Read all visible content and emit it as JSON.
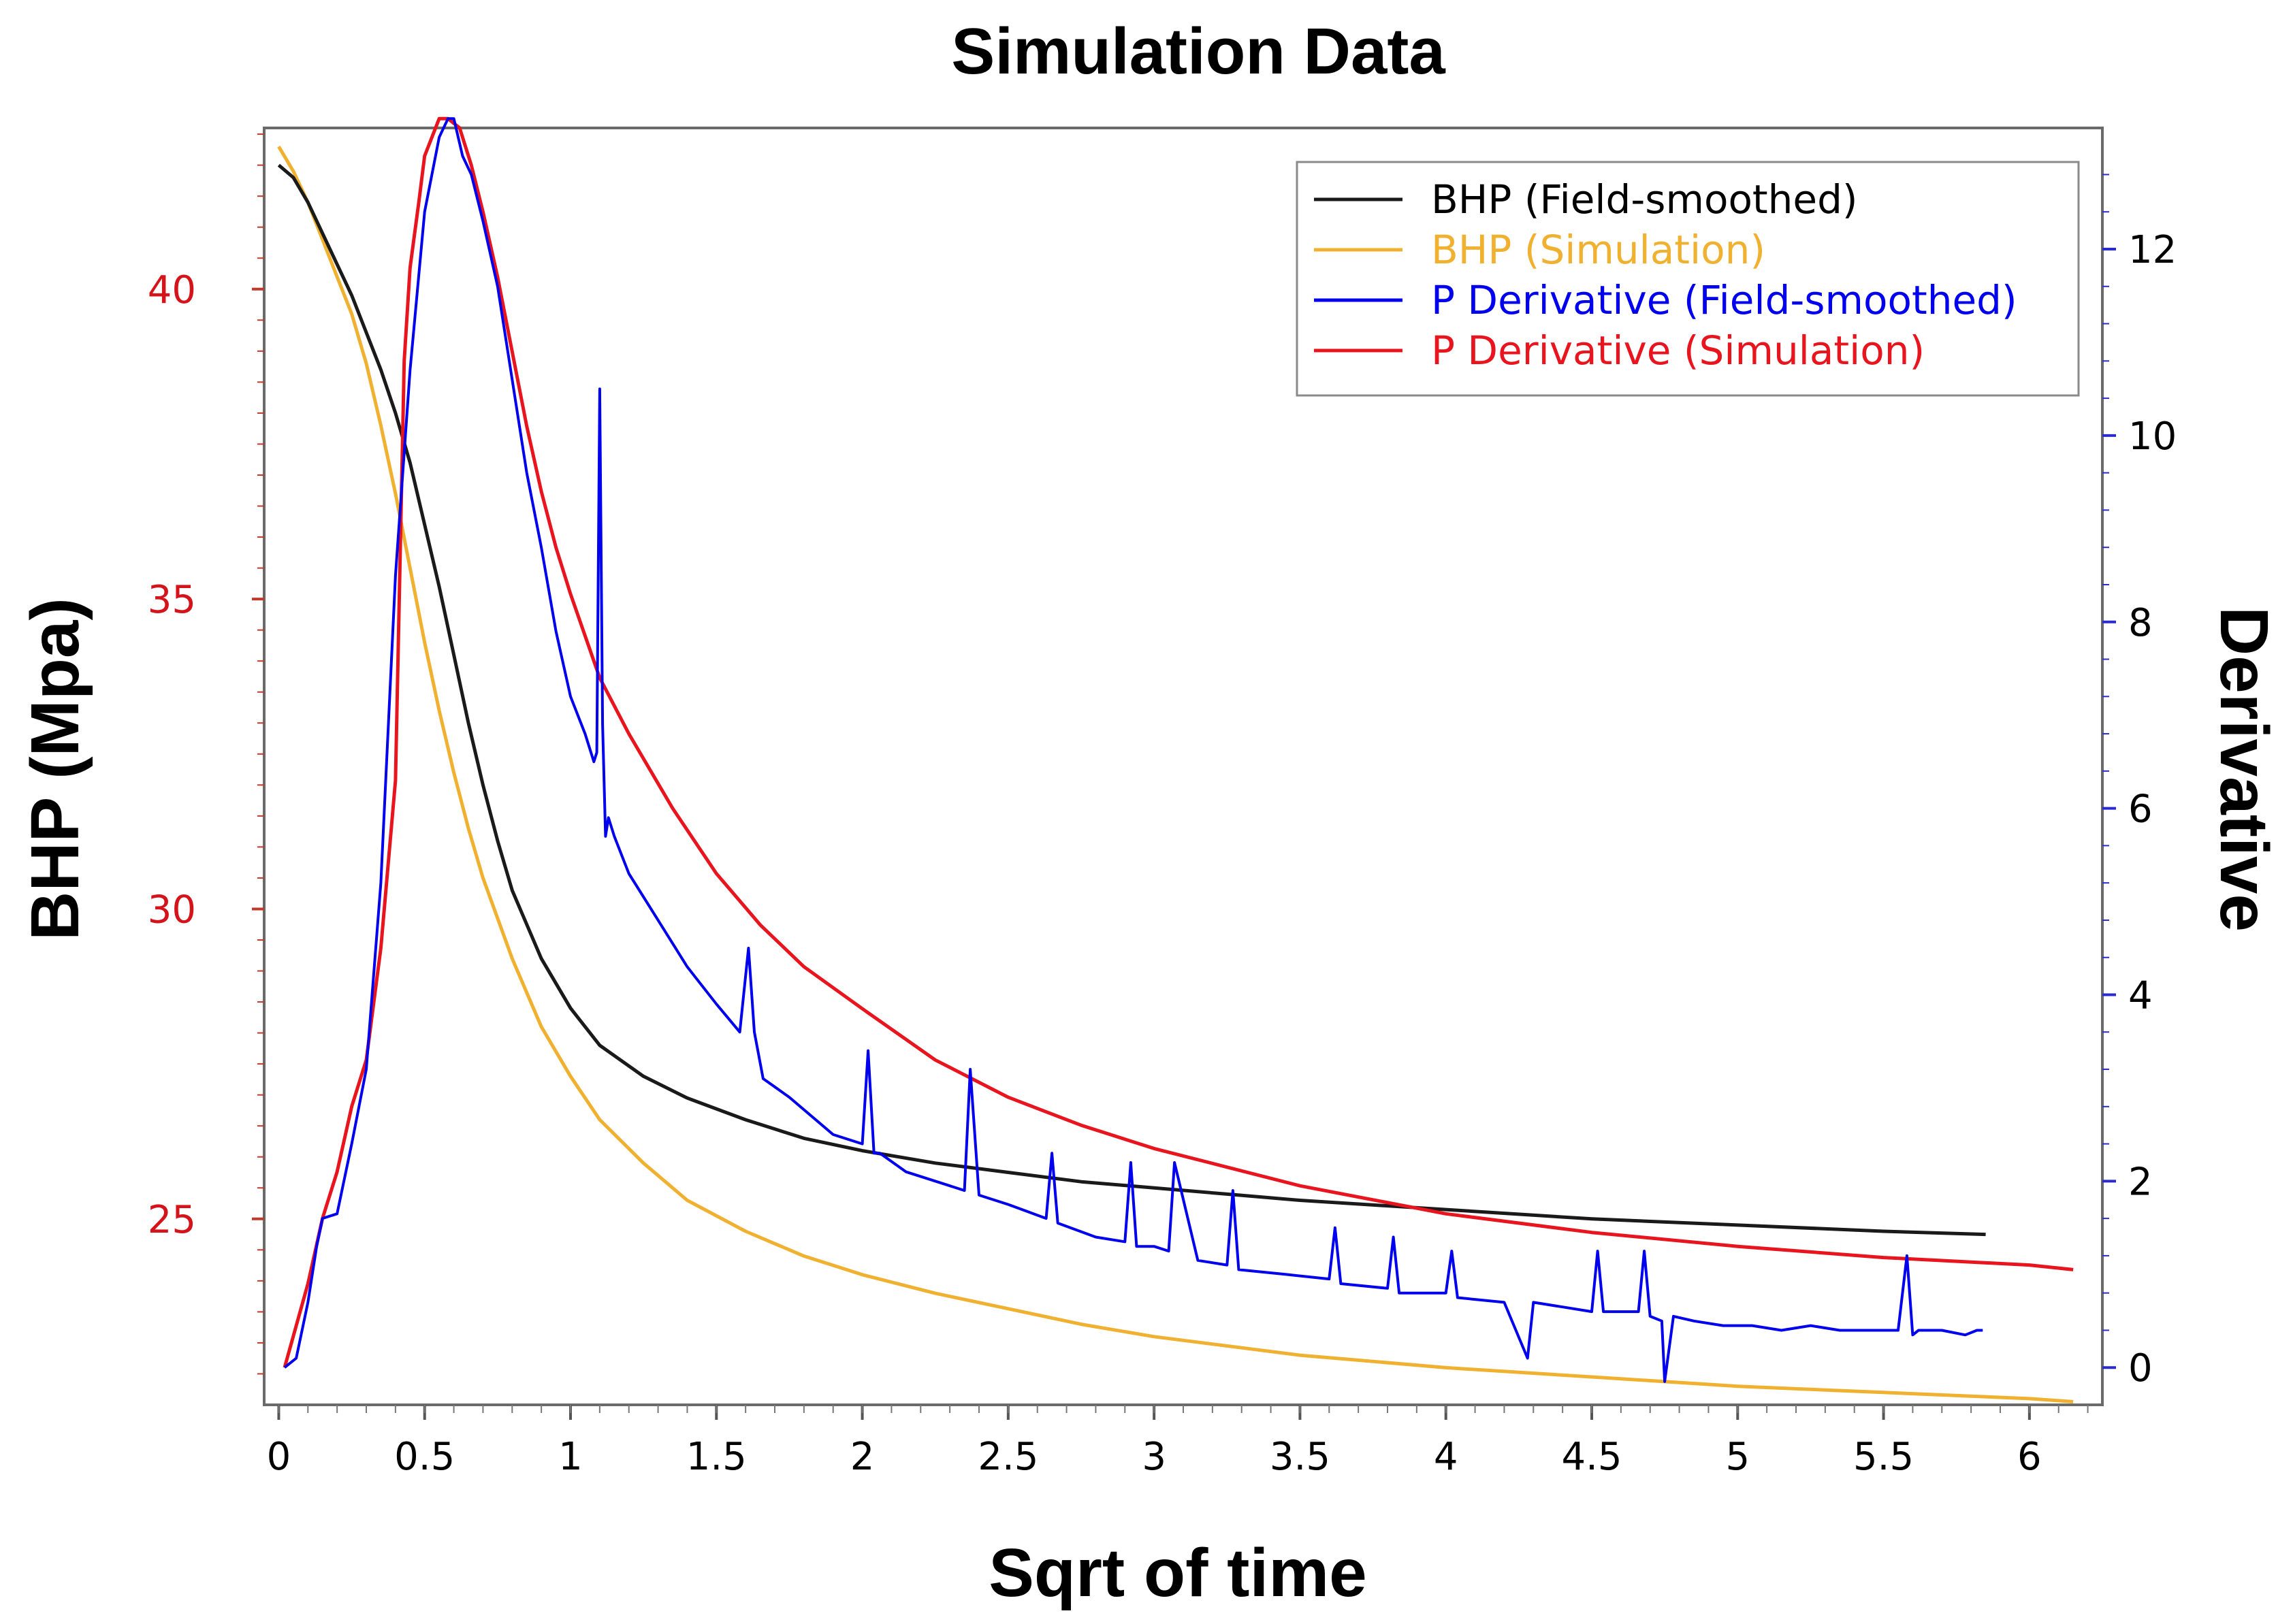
{
  "chart_data": {
    "type": "line",
    "title": "Simulation Data",
    "xlabel": "Sqrt of time",
    "ylabel_left": "BHP (Mpa)",
    "ylabel_right": "Derivative",
    "xlim": [
      -0.05,
      6.25
    ],
    "ylim_left": [
      22.0,
      42.6
    ],
    "ylim_right": [
      -0.4,
      13.3
    ],
    "x_ticks": [
      0,
      0.5,
      1,
      1.5,
      2,
      2.5,
      3,
      3.5,
      4,
      4.5,
      5,
      5.5,
      6
    ],
    "x_tick_labels": [
      "0",
      "0.5",
      "1",
      "1.5",
      "2",
      "2.5",
      "3",
      "3.5",
      "4",
      "4.5",
      "5",
      "5.5",
      "6"
    ],
    "y_left_ticks": [
      25,
      30,
      35,
      40
    ],
    "y_left_tick_labels": [
      "25",
      "30",
      "35",
      "40"
    ],
    "y_right_ticks": [
      0,
      2,
      4,
      6,
      8,
      10,
      12
    ],
    "y_right_tick_labels": [
      "0",
      "2",
      "4",
      "6",
      "8",
      "10",
      "12"
    ],
    "grid": false,
    "legend_position": "top-right",
    "series": [
      {
        "name": "BHP (Field-smoothed)",
        "axis": "left",
        "color": "#1a1a1a",
        "x": [
          0.0,
          0.05,
          0.1,
          0.15,
          0.2,
          0.25,
          0.3,
          0.35,
          0.4,
          0.45,
          0.5,
          0.55,
          0.6,
          0.65,
          0.7,
          0.75,
          0.8,
          0.9,
          1.0,
          1.1,
          1.25,
          1.4,
          1.6,
          1.8,
          2.0,
          2.25,
          2.5,
          2.75,
          3.0,
          3.25,
          3.5,
          4.0,
          4.5,
          5.0,
          5.5,
          5.85
        ],
        "values": [
          42.0,
          41.8,
          41.4,
          40.9,
          40.4,
          39.9,
          39.3,
          38.7,
          38.0,
          37.2,
          36.2,
          35.2,
          34.1,
          33.0,
          32.0,
          31.1,
          30.3,
          29.2,
          28.4,
          27.8,
          27.3,
          26.95,
          26.6,
          26.3,
          26.1,
          25.9,
          25.75,
          25.6,
          25.5,
          25.4,
          25.3,
          25.15,
          25.0,
          24.9,
          24.8,
          24.75
        ]
      },
      {
        "name": "BHP (Simulation)",
        "axis": "left",
        "color": "#f0b030",
        "x": [
          0.0,
          0.05,
          0.1,
          0.15,
          0.2,
          0.25,
          0.3,
          0.35,
          0.4,
          0.45,
          0.5,
          0.55,
          0.6,
          0.65,
          0.7,
          0.8,
          0.9,
          1.0,
          1.1,
          1.25,
          1.4,
          1.6,
          1.8,
          2.0,
          2.25,
          2.5,
          2.75,
          3.0,
          3.5,
          4.0,
          4.5,
          5.0,
          5.5,
          6.0,
          6.15
        ],
        "values": [
          42.3,
          41.9,
          41.4,
          40.8,
          40.2,
          39.6,
          38.8,
          37.8,
          36.7,
          35.5,
          34.3,
          33.2,
          32.2,
          31.3,
          30.5,
          29.2,
          28.1,
          27.3,
          26.6,
          25.9,
          25.3,
          24.8,
          24.4,
          24.1,
          23.8,
          23.55,
          23.3,
          23.1,
          22.8,
          22.6,
          22.45,
          22.3,
          22.2,
          22.1,
          22.05
        ]
      },
      {
        "name": "P Derivative (Field-smoothed)",
        "axis": "right",
        "color": "#0000ee",
        "x": [
          0.02,
          0.06,
          0.1,
          0.13,
          0.15,
          0.2,
          0.25,
          0.3,
          0.35,
          0.4,
          0.45,
          0.5,
          0.55,
          0.58,
          0.6,
          0.63,
          0.66,
          0.7,
          0.75,
          0.8,
          0.85,
          0.9,
          0.95,
          1.0,
          1.05,
          1.08,
          1.09,
          1.1,
          1.11,
          1.12,
          1.13,
          1.15,
          1.2,
          1.3,
          1.4,
          1.5,
          1.58,
          1.61,
          1.63,
          1.66,
          1.75,
          1.9,
          2.0,
          2.02,
          2.04,
          2.06,
          2.15,
          2.3,
          2.35,
          2.37,
          2.4,
          2.5,
          2.63,
          2.65,
          2.67,
          2.8,
          2.9,
          2.92,
          2.94,
          3.0,
          3.05,
          3.07,
          3.15,
          3.25,
          3.27,
          3.29,
          3.45,
          3.6,
          3.62,
          3.64,
          3.8,
          3.82,
          3.84,
          4.0,
          4.02,
          4.04,
          4.2,
          4.28,
          4.3,
          4.4,
          4.5,
          4.52,
          4.54,
          4.66,
          4.68,
          4.7,
          4.74,
          4.75,
          4.78,
          4.85,
          4.95,
          5.05,
          5.15,
          5.25,
          5.35,
          5.45,
          5.55,
          5.58,
          5.6,
          5.62,
          5.7,
          5.78,
          5.82,
          5.84
        ],
        "values": [
          0.0,
          0.1,
          0.7,
          1.3,
          1.6,
          1.65,
          2.4,
          3.2,
          5.2,
          8.5,
          10.7,
          12.4,
          13.2,
          13.4,
          13.4,
          13.0,
          12.8,
          12.3,
          11.6,
          10.6,
          9.6,
          8.8,
          7.9,
          7.2,
          6.8,
          6.5,
          6.6,
          10.5,
          6.9,
          5.7,
          5.9,
          5.7,
          5.3,
          4.8,
          4.3,
          3.9,
          3.6,
          4.5,
          3.6,
          3.1,
          2.9,
          2.5,
          2.4,
          3.4,
          2.3,
          2.3,
          2.1,
          1.95,
          1.9,
          3.2,
          1.85,
          1.75,
          1.6,
          2.3,
          1.55,
          1.4,
          1.35,
          2.2,
          1.3,
          1.3,
          1.25,
          2.2,
          1.15,
          1.1,
          1.9,
          1.05,
          1.0,
          0.95,
          1.5,
          0.9,
          0.85,
          1.4,
          0.8,
          0.8,
          1.25,
          0.75,
          0.7,
          0.1,
          0.7,
          0.65,
          0.6,
          1.25,
          0.6,
          0.6,
          1.25,
          0.55,
          0.5,
          -0.15,
          0.55,
          0.5,
          0.45,
          0.45,
          0.4,
          0.45,
          0.4,
          0.4,
          0.4,
          1.2,
          0.35,
          0.4,
          0.4,
          0.35,
          0.4,
          0.4
        ]
      },
      {
        "name": "P Derivative (Simulation)",
        "axis": "right",
        "color": "#e8141e",
        "x": [
          0.02,
          0.1,
          0.15,
          0.2,
          0.25,
          0.3,
          0.35,
          0.4,
          0.43,
          0.45,
          0.48,
          0.5,
          0.55,
          0.58,
          0.62,
          0.66,
          0.7,
          0.75,
          0.8,
          0.85,
          0.9,
          0.95,
          1.0,
          1.1,
          1.2,
          1.35,
          1.5,
          1.65,
          1.8,
          2.0,
          2.25,
          2.5,
          2.75,
          3.0,
          3.25,
          3.5,
          4.0,
          4.5,
          5.0,
          5.5,
          6.0,
          6.15
        ],
        "values": [
          0.0,
          0.9,
          1.6,
          2.1,
          2.8,
          3.3,
          4.5,
          6.3,
          10.8,
          11.8,
          12.5,
          13.0,
          13.4,
          13.4,
          13.3,
          12.9,
          12.4,
          11.7,
          10.9,
          10.1,
          9.4,
          8.8,
          8.3,
          7.4,
          6.8,
          6.0,
          5.3,
          4.75,
          4.3,
          3.85,
          3.3,
          2.9,
          2.6,
          2.35,
          2.15,
          1.95,
          1.65,
          1.45,
          1.3,
          1.18,
          1.1,
          1.05
        ]
      }
    ]
  }
}
